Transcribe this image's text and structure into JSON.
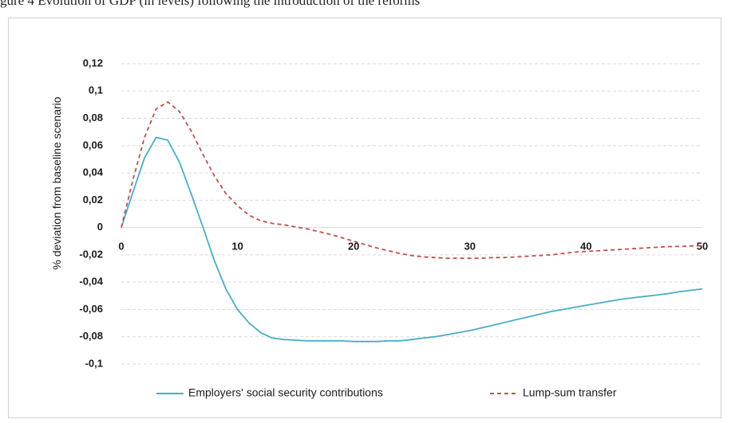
{
  "caption": "gure 4 Evolution of GDP (in levels) following the introduction of the reforms",
  "chart_data": {
    "type": "line",
    "ylabel": "% deviation from baseline scenario",
    "xlabel": "",
    "title": "",
    "xlim": [
      0,
      50
    ],
    "ylim": [
      -0.1,
      0.12
    ],
    "x_ticks": [
      0,
      10,
      20,
      30,
      40,
      50
    ],
    "x_tick_labels": [
      "0",
      "10",
      "20",
      "30",
      "40",
      "50"
    ],
    "y_ticks": [
      0.12,
      0.1,
      0.08,
      0.06,
      0.04,
      0.02,
      0,
      -0.02,
      -0.04,
      -0.06,
      -0.08,
      -0.1
    ],
    "y_tick_labels": [
      "0,12",
      "0,1",
      "0,08",
      "0,06",
      "0,04",
      "0,02",
      "0",
      "-0,02",
      "-0,04",
      "-0,06",
      "-0,08",
      "-0,1"
    ],
    "grid": "horizontal dashed",
    "legend_position": "bottom",
    "series": [
      {
        "name": "Employers' social security contributions",
        "color": "#4bacc6",
        "style": "solid",
        "x": [
          0,
          1,
          2,
          3,
          4,
          5,
          6,
          7,
          8,
          9,
          10,
          11,
          12,
          13,
          14,
          15,
          16,
          17,
          18,
          19,
          20,
          21,
          22,
          23,
          24,
          25,
          26,
          27,
          28,
          29,
          30,
          31,
          32,
          33,
          34,
          35,
          36,
          37,
          38,
          39,
          40,
          41,
          42,
          43,
          44,
          45,
          46,
          47,
          48,
          49,
          50
        ],
        "y": [
          0,
          0.026,
          0.051,
          0.066,
          0.064,
          0.048,
          0.025,
          0.001,
          -0.024,
          -0.045,
          -0.06,
          -0.07,
          -0.077,
          -0.081,
          -0.082,
          -0.0825,
          -0.083,
          -0.083,
          -0.083,
          -0.083,
          -0.0835,
          -0.0835,
          -0.0835,
          -0.083,
          -0.083,
          -0.082,
          -0.081,
          -0.08,
          -0.0785,
          -0.077,
          -0.0755,
          -0.0735,
          -0.0715,
          -0.0695,
          -0.0675,
          -0.0655,
          -0.0635,
          -0.0615,
          -0.06,
          -0.0585,
          -0.057,
          -0.0555,
          -0.054,
          -0.0525,
          -0.0515,
          -0.0505,
          -0.0495,
          -0.0485,
          -0.047,
          -0.046,
          -0.045
        ]
      },
      {
        "name": "Lump-sum transfer",
        "color": "#c0504d",
        "style": "dashed",
        "x": [
          0,
          1,
          2,
          3,
          4,
          5,
          6,
          7,
          8,
          9,
          10,
          11,
          12,
          13,
          14,
          15,
          16,
          17,
          18,
          19,
          20,
          21,
          22,
          23,
          24,
          25,
          26,
          27,
          28,
          29,
          30,
          31,
          32,
          33,
          34,
          35,
          36,
          37,
          38,
          39,
          40,
          41,
          42,
          43,
          44,
          45,
          46,
          47,
          48,
          49,
          50
        ],
        "y": [
          0,
          0.035,
          0.066,
          0.087,
          0.092,
          0.085,
          0.071,
          0.054,
          0.038,
          0.025,
          0.016,
          0.009,
          0.005,
          0.003,
          0.002,
          0.0005,
          -0.001,
          -0.003,
          -0.005,
          -0.0075,
          -0.01,
          -0.0125,
          -0.015,
          -0.017,
          -0.019,
          -0.0205,
          -0.0215,
          -0.022,
          -0.0225,
          -0.0225,
          -0.0225,
          -0.0225,
          -0.022,
          -0.022,
          -0.0215,
          -0.021,
          -0.0205,
          -0.02,
          -0.019,
          -0.018,
          -0.0175,
          -0.017,
          -0.0165,
          -0.016,
          -0.0155,
          -0.015,
          -0.0145,
          -0.014,
          -0.0138,
          -0.0135,
          -0.0133
        ]
      }
    ]
  }
}
